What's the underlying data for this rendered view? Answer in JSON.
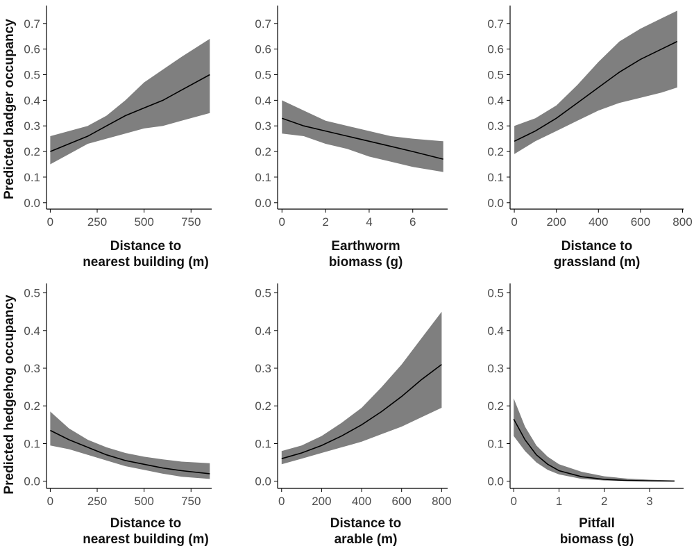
{
  "y_axis_labels": {
    "top_row": "Predicted badger occupancy",
    "bottom_row": "Predicted hedgehog occupancy"
  },
  "colors": {
    "ribbon": "#7f7f7f",
    "line": "#000000",
    "axis": "#000000",
    "tick_text": "#4d4d4d"
  },
  "chart_data": [
    {
      "type": "line",
      "row": "top",
      "xlabel_line1": "Distance to",
      "xlabel_line2": "nearest building (m)",
      "xlim": [
        -20,
        860
      ],
      "ylim": [
        -0.025,
        0.77
      ],
      "xticks": [
        0,
        250,
        500,
        750
      ],
      "xtick_labels": [
        "0",
        "250",
        "500",
        "750"
      ],
      "yticks": [
        0,
        0.1,
        0.2,
        0.3,
        0.4,
        0.5,
        0.6,
        0.7
      ],
      "ytick_labels": [
        "0.0",
        "0.1",
        "0.2",
        "0.3",
        "0.4",
        "0.5",
        "0.6",
        "0.7"
      ],
      "x": [
        0,
        100,
        200,
        300,
        400,
        500,
        600,
        700,
        850
      ],
      "y": [
        0.2,
        0.23,
        0.26,
        0.3,
        0.34,
        0.37,
        0.4,
        0.44,
        0.5
      ],
      "lower": [
        0.15,
        0.19,
        0.23,
        0.25,
        0.27,
        0.29,
        0.3,
        0.32,
        0.35
      ],
      "upper": [
        0.26,
        0.28,
        0.3,
        0.34,
        0.4,
        0.47,
        0.52,
        0.57,
        0.64
      ]
    },
    {
      "type": "line",
      "row": "top",
      "xlabel_line1": "Earthworm",
      "xlabel_line2": "biomass (g)",
      "xlim": [
        -0.2,
        7.6
      ],
      "ylim": [
        -0.025,
        0.77
      ],
      "xticks": [
        0,
        2,
        4,
        6
      ],
      "xtick_labels": [
        "0",
        "2",
        "4",
        "6"
      ],
      "yticks": [
        0,
        0.1,
        0.2,
        0.3,
        0.4,
        0.5,
        0.6,
        0.7
      ],
      "ytick_labels": [
        "0.0",
        "0.1",
        "0.2",
        "0.3",
        "0.4",
        "0.5",
        "0.6",
        "0.7"
      ],
      "x": [
        0,
        1,
        2,
        3,
        4,
        5,
        6,
        7.4
      ],
      "y": [
        0.33,
        0.3,
        0.28,
        0.26,
        0.24,
        0.22,
        0.2,
        0.17
      ],
      "lower": [
        0.27,
        0.26,
        0.23,
        0.21,
        0.18,
        0.16,
        0.14,
        0.12
      ],
      "upper": [
        0.4,
        0.36,
        0.32,
        0.3,
        0.28,
        0.26,
        0.25,
        0.24
      ]
    },
    {
      "type": "line",
      "row": "top",
      "xlabel_line1": "Distance to",
      "xlabel_line2": "grassland (m)",
      "xlim": [
        -20,
        805
      ],
      "ylim": [
        -0.025,
        0.77
      ],
      "xticks": [
        0,
        200,
        400,
        600,
        800
      ],
      "xtick_labels": [
        "0",
        "200",
        "400",
        "600",
        "800"
      ],
      "yticks": [
        0,
        0.1,
        0.2,
        0.3,
        0.4,
        0.5,
        0.6,
        0.7
      ],
      "ytick_labels": [
        "0.0",
        "0.1",
        "0.2",
        "0.3",
        "0.4",
        "0.5",
        "0.6",
        "0.7"
      ],
      "x": [
        0,
        100,
        200,
        300,
        400,
        500,
        600,
        700,
        775
      ],
      "y": [
        0.24,
        0.28,
        0.33,
        0.39,
        0.45,
        0.51,
        0.56,
        0.6,
        0.63
      ],
      "lower": [
        0.19,
        0.24,
        0.28,
        0.32,
        0.36,
        0.39,
        0.41,
        0.43,
        0.45
      ],
      "upper": [
        0.3,
        0.33,
        0.38,
        0.46,
        0.55,
        0.63,
        0.68,
        0.72,
        0.75
      ]
    },
    {
      "type": "line",
      "row": "bottom",
      "xlabel_line1": "Distance to",
      "xlabel_line2": "nearest building (m)",
      "xlim": [
        -20,
        860
      ],
      "ylim": [
        -0.019,
        0.525
      ],
      "xticks": [
        0,
        250,
        500,
        750
      ],
      "xtick_labels": [
        "0",
        "250",
        "500",
        "750"
      ],
      "yticks": [
        0,
        0.1,
        0.2,
        0.3,
        0.4,
        0.5
      ],
      "ytick_labels": [
        "0.0",
        "0.1",
        "0.2",
        "0.3",
        "0.4",
        "0.5"
      ],
      "x": [
        0,
        100,
        200,
        300,
        400,
        500,
        600,
        700,
        850
      ],
      "y": [
        0.135,
        0.11,
        0.09,
        0.07,
        0.055,
        0.045,
        0.035,
        0.028,
        0.02
      ],
      "lower": [
        0.095,
        0.085,
        0.07,
        0.055,
        0.04,
        0.03,
        0.02,
        0.012,
        0.006
      ],
      "upper": [
        0.185,
        0.14,
        0.11,
        0.09,
        0.075,
        0.065,
        0.058,
        0.052,
        0.048
      ]
    },
    {
      "type": "line",
      "row": "bottom",
      "xlabel_line1": "Distance to",
      "xlabel_line2": "arable (m)",
      "xlim": [
        -20,
        830
      ],
      "ylim": [
        -0.019,
        0.525
      ],
      "xticks": [
        0,
        200,
        400,
        600,
        800
      ],
      "xtick_labels": [
        "0",
        "200",
        "400",
        "600",
        "800"
      ],
      "yticks": [
        0,
        0.1,
        0.2,
        0.3,
        0.4,
        0.5
      ],
      "ytick_labels": [
        "0.0",
        "0.1",
        "0.2",
        "0.3",
        "0.4",
        "0.5"
      ],
      "x": [
        0,
        100,
        200,
        300,
        400,
        500,
        600,
        700,
        800
      ],
      "y": [
        0.06,
        0.075,
        0.095,
        0.12,
        0.15,
        0.185,
        0.225,
        0.27,
        0.31
      ],
      "lower": [
        0.045,
        0.06,
        0.075,
        0.09,
        0.105,
        0.125,
        0.145,
        0.17,
        0.195
      ],
      "upper": [
        0.08,
        0.095,
        0.12,
        0.155,
        0.195,
        0.25,
        0.31,
        0.38,
        0.45
      ]
    },
    {
      "type": "line",
      "row": "bottom",
      "xlabel_line1": "Pitfall",
      "xlabel_line2": "biomass (g)",
      "xlim": [
        -0.08,
        3.75
      ],
      "ylim": [
        -0.019,
        0.525
      ],
      "xticks": [
        0,
        1,
        2,
        3
      ],
      "xtick_labels": [
        "0",
        "1",
        "2",
        "3"
      ],
      "yticks": [
        0,
        0.1,
        0.2,
        0.3,
        0.4,
        0.5
      ],
      "ytick_labels": [
        "0.0",
        "0.1",
        "0.2",
        "0.3",
        "0.4",
        "0.5"
      ],
      "x": [
        0,
        0.25,
        0.5,
        0.75,
        1,
        1.5,
        2,
        2.5,
        3,
        3.55
      ],
      "y": [
        0.165,
        0.11,
        0.07,
        0.045,
        0.028,
        0.012,
        0.005,
        0.002,
        0.001,
        0.0005
      ],
      "lower": [
        0.12,
        0.08,
        0.05,
        0.03,
        0.018,
        0.006,
        0.002,
        0.0008,
        0.0003,
        0.0001
      ],
      "upper": [
        0.22,
        0.145,
        0.095,
        0.065,
        0.045,
        0.025,
        0.013,
        0.007,
        0.004,
        0.002
      ]
    }
  ]
}
